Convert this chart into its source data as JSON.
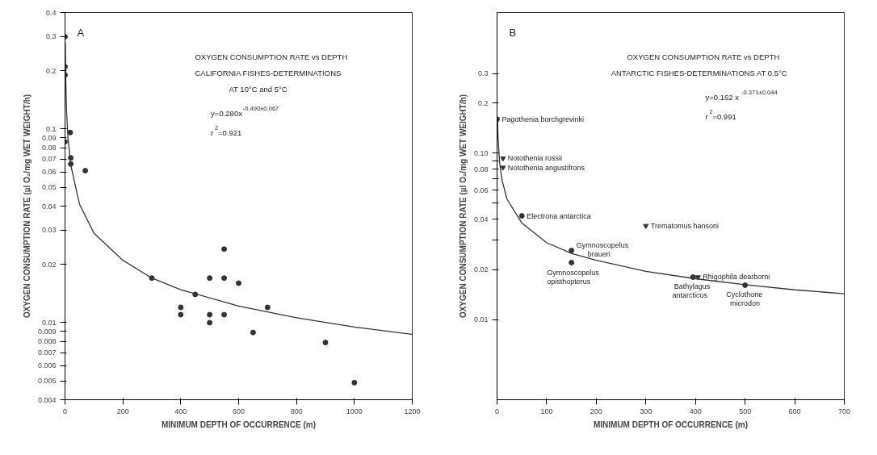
{
  "chart_data": [
    {
      "type": "scatter",
      "title": "OXYGEN CONSUMPTION RATE vs DEPTH",
      "subtitle": "CALIFORNIA FISHES-DETERMINATIONS\nAT 10°C and 5°C",
      "xlabel": "MINIMUM DEPTH OF OCCURRENCE (m)",
      "ylabel": "OXYGEN CONSUMPTION RATE (µl O₂/mg WET WEIGHT/h)",
      "log": "y",
      "grid": false,
      "xlim": [
        0,
        1200
      ],
      "xticks": [
        0,
        200,
        400,
        600,
        800,
        1000,
        1200
      ],
      "ylim": [
        0.004,
        0.4
      ],
      "yticks": [
        0.004,
        0.005,
        0.006,
        0.007,
        0.008,
        0.009,
        0.01,
        0.02,
        0.03,
        0.04,
        0.05,
        0.06,
        0.07,
        0.08,
        0.09,
        0.1,
        0.2,
        0.3,
        0.4
      ],
      "annotations": [
        "A",
        "y=0.280x$^{-0.490±0.067}$",
        "r$^{2}$=0.921"
      ],
      "series": [
        {
          "marker": "circle",
          "color": "#333333",
          "x": [
            0,
            0,
            0,
            0,
            18,
            20,
            20,
            70,
            300,
            400,
            400,
            450,
            500,
            500,
            500,
            550,
            550,
            550,
            600,
            650,
            700,
            900,
            1000
          ],
          "values": [
            0.3,
            0.21,
            0.19,
            0.086,
            0.096,
            0.071,
            0.066,
            0.061,
            0.017,
            0.012,
            0.011,
            0.014,
            0.017,
            0.011,
            0.01,
            0.024,
            0.017,
            0.011,
            0.016,
            0.0089,
            0.012,
            0.0079,
            0.0049
          ]
        },
        {
          "type": "line",
          "marker": "none",
          "color": "#333333",
          "x": [
            1,
            2,
            5,
            10,
            20,
            50,
            100,
            200,
            300,
            400,
            600,
            800,
            1000,
            1200
          ],
          "values": [
            0.28,
            0.199,
            0.127,
            0.091,
            0.065,
            0.041,
            0.029,
            0.021,
            0.017,
            0.0148,
            0.0122,
            0.0106,
            0.0095,
            0.0087
          ]
        }
      ]
    },
    {
      "type": "scatter",
      "title": "OXYGEN CONSUMPTION RATE vs DEPTH",
      "subtitle": "ANTARCTIC FISHES-DETERMINATIONS AT 0.5°C",
      "xlabel": "MINIMUM DEPTH OF OCCURRENCE (m)",
      "ylabel": "OXYGEN CONSUMPTION RATE (µl O₂/mg WET WEIGHT/h)",
      "log": "y",
      "grid": false,
      "xlim": [
        0,
        700
      ],
      "xticks": [
        0,
        100,
        200,
        300,
        400,
        500,
        600,
        700
      ],
      "ylim": [
        0.0033,
        0.7
      ],
      "yticks": [
        0.01,
        0.02,
        {
          "value": 0.03,
          "label": null
        },
        0.04,
        {
          "value": 0.05,
          "label": null
        },
        0.06,
        {
          "value": 0.07,
          "label": null
        },
        0.08,
        {
          "value": 0.09,
          "label": null
        },
        {
          "value": 0.1,
          "label": "0.10"
        },
        0.2,
        0.3
      ],
      "annotations": [
        "B",
        "y=0.162 x$^{-0.371±0.044}$",
        "r$^{2}$=0.991",
        {
          "text": "Pagothenia borchgrevinki",
          "x": 0,
          "y": 0.16
        },
        {
          "text": "Notothenia rossii",
          "x": 12,
          "y": 0.093
        },
        {
          "text": "Notothenia angustifrons",
          "x": 12,
          "y": 0.082
        },
        {
          "text": "Electrona antarctica",
          "x": 50,
          "y": 0.042
        },
        {
          "text": "Trematomus hansoni",
          "x": 300,
          "y": 0.0366
        },
        {
          "text": "Gymnoscopelus\nbraueri",
          "x": 150,
          "y": 0.026
        },
        {
          "text": "Gymnoscopelus\nopisthopterus",
          "x": 150,
          "y": 0.022
        },
        {
          "text": "Bathylagus\nantarcticus",
          "x": 395,
          "y": 0.018
        },
        {
          "text": "Rhigophila dearborni",
          "x": 405,
          "y": 0.018
        },
        {
          "text": "Cyclothone\nmicrodon",
          "x": 500,
          "y": 0.0161
        }
      ],
      "series": [
        {
          "marker": "circle",
          "color": "#333333",
          "x": [
            0,
            50,
            150,
            150,
            395,
            500
          ],
          "values": [
            0.16,
            0.042,
            0.026,
            0.022,
            0.018,
            0.0161
          ]
        },
        {
          "marker": "triangle",
          "color": "#333333",
          "x": [
            12,
            12,
            300,
            405
          ],
          "values": [
            0.093,
            0.082,
            0.0366,
            0.018
          ]
        },
        {
          "type": "line",
          "marker": "none",
          "color": "#333333",
          "x": [
            1,
            2,
            5,
            10,
            20,
            50,
            100,
            150,
            200,
            300,
            400,
            500,
            600,
            700
          ],
          "values": [
            0.162,
            0.125,
            0.089,
            0.069,
            0.053,
            0.038,
            0.029,
            0.025,
            0.0227,
            0.0195,
            0.0176,
            0.0162,
            0.0151,
            0.0143
          ]
        }
      ]
    }
  ]
}
